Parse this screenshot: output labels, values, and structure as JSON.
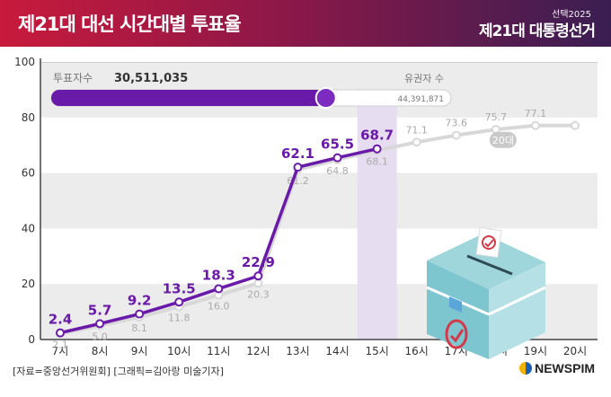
{
  "header": {
    "title": "제21대 대선 시간대별 투표율",
    "brand_small": "선택2025",
    "brand_big": "제21대 대통령선거"
  },
  "progress": {
    "voters_label": "투표자수",
    "voters_value": "30,511,035",
    "eligible_label": "유권자 수",
    "eligible_value": "44,391,871",
    "fill_fraction": 0.687
  },
  "footer": {
    "source": "[자료=중앙선거위원회] [그래픽=김아랑 미술기자]",
    "logo": "NEWSPIM"
  },
  "colors": {
    "current_line": "#6a1aa8",
    "previous_line": "#d8d8d8",
    "highlight": "#e6ddf0",
    "band": "#ececec"
  },
  "chart_data": {
    "type": "line",
    "categories": [
      "7시",
      "8시",
      "9시",
      "10시",
      "11시",
      "12시",
      "13시",
      "14시",
      "15시",
      "16시",
      "17시",
      "18시",
      "19시",
      "20시"
    ],
    "ylim": [
      0,
      100
    ],
    "yticks": [
      0,
      20,
      40,
      60,
      80,
      100
    ],
    "highlight_category": "15시",
    "series": [
      {
        "name": "",
        "values": [
          2.4,
          5.7,
          9.2,
          13.5,
          18.3,
          22.9,
          62.1,
          65.5,
          68.7,
          null,
          null,
          null,
          null,
          null
        ],
        "labels": [
          "2.4",
          "5.7",
          "9.2",
          "13.5",
          "18.3",
          "22.9",
          "62.1",
          "65.5",
          "68.7",
          "",
          "",
          "",
          "",
          ""
        ]
      },
      {
        "name": "20대",
        "values": [
          2.1,
          5.0,
          8.1,
          11.8,
          16.0,
          20.3,
          61.2,
          64.8,
          68.1,
          71.1,
          73.6,
          75.7,
          77.1,
          77.1
        ],
        "labels": [
          "2.1",
          "5.0",
          "8.1",
          "11.8",
          "16.0",
          "20.3",
          "61.2",
          "64.8",
          "68.1",
          "71.1",
          "73.6",
          "75.7",
          "77.1",
          ""
        ]
      }
    ]
  }
}
